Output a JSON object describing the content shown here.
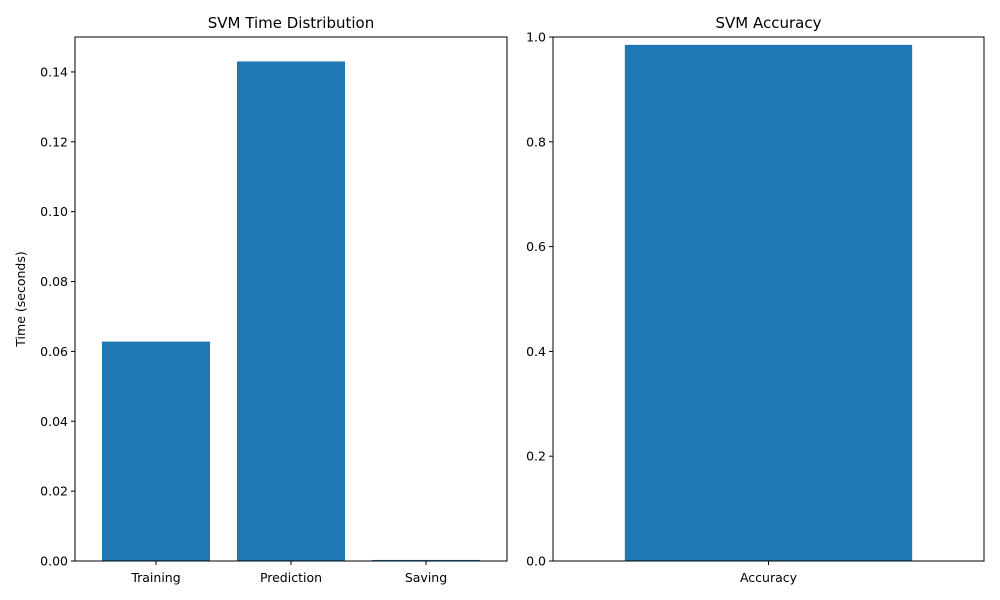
{
  "chart_data": [
    {
      "type": "bar",
      "title": "SVM Time Distribution",
      "xlabel": "",
      "ylabel": "Time (seconds)",
      "categories": [
        "Training",
        "Prediction",
        "Saving"
      ],
      "values": [
        0.0628,
        0.143,
        0.0003
      ],
      "ylim": [
        0,
        0.15
      ],
      "yticks": [
        "0.00",
        "0.02",
        "0.04",
        "0.06",
        "0.08",
        "0.10",
        "0.12",
        "0.14"
      ],
      "ytick_values": [
        0,
        0.02,
        0.04,
        0.06,
        0.08,
        0.1,
        0.12,
        0.14
      ],
      "color": "#1f77b4",
      "grid": false
    },
    {
      "type": "bar",
      "title": "SVM Accuracy",
      "xlabel": "",
      "ylabel": "",
      "categories": [
        "Accuracy"
      ],
      "values": [
        0.985
      ],
      "ylim": [
        0,
        1.0
      ],
      "yticks": [
        "0.0",
        "0.2",
        "0.4",
        "0.6",
        "0.8",
        "1.0"
      ],
      "ytick_values": [
        0,
        0.2,
        0.4,
        0.6,
        0.8,
        1.0
      ],
      "color": "#1f77b4",
      "grid": false
    }
  ]
}
